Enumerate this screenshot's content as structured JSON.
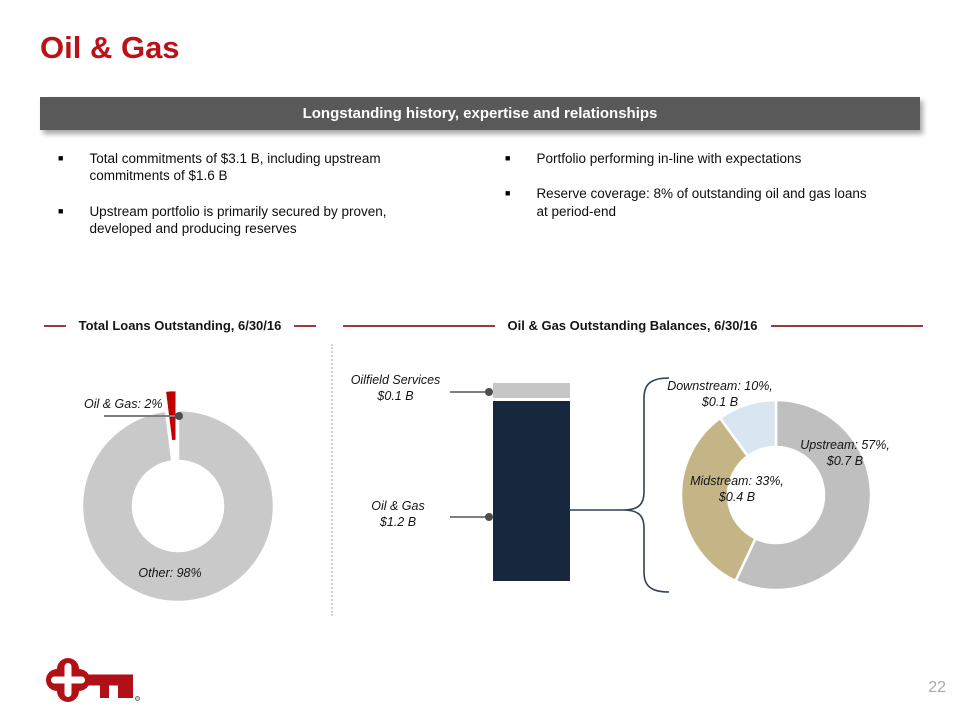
{
  "slide": {
    "title": "Oil & Gas",
    "banner": "Longstanding history, expertise and relationships",
    "page_number": "22",
    "accent_red": "#bb1119",
    "banner_bg": "#595959",
    "logo": "keybank-key-logo"
  },
  "bullets": {
    "left": [
      "Total commitments of $3.1 B, including upstream\ncommitments of $1.6 B",
      "Upstream portfolio is primarily secured by proven,\ndeveloped and producing reserves"
    ],
    "right": [
      "Portfolio performing in-line with expectations",
      "Reserve coverage: 8% of outstanding oil and gas loans\nat period-end"
    ]
  },
  "sections": {
    "left_header": "Total Loans Outstanding, 6/30/16",
    "right_header": "Oil & Gas Outstanding Balances, 6/30/16"
  },
  "chart_data": [
    {
      "type": "pie",
      "donut": true,
      "title": "Total Loans Outstanding, 6/30/16",
      "start_angle_deg": -7.2,
      "legend": "none, direct labels",
      "slices": [
        {
          "label": "Oil & Gas",
          "pct": 2,
          "color": "#c00000",
          "exploded": true,
          "callout": "Oil & Gas: 2%"
        },
        {
          "label": "Other",
          "pct": 98,
          "color": "#c9c9c9",
          "exploded": false,
          "callout": "Other: 98%"
        }
      ]
    },
    {
      "type": "bar",
      "stacked": true,
      "title": "Oil & Gas Outstanding Balances, 6/30/16",
      "unit": "$ Billions",
      "segments": [
        {
          "label": "Oilfield Services",
          "value": 0.1,
          "value_label": "Oilfield Services\n$0.1 B",
          "color": "#c6c6c6"
        },
        {
          "label": "Oil & Gas",
          "value": 1.2,
          "value_label": "Oil & Gas\n$1.2 B",
          "color": "#16273e"
        }
      ]
    },
    {
      "type": "pie",
      "donut": true,
      "title": "Oil & Gas Outstanding Balances breakdown, 6/30/16",
      "start_angle_deg": 0,
      "legend": "none, direct labels",
      "slices": [
        {
          "label": "Upstream",
          "pct": 57,
          "value": 0.7,
          "color": "#bfbfbf",
          "exploded": false,
          "callout": "Upstream: 57%,\n$0.7 B"
        },
        {
          "label": "Midstream",
          "pct": 33,
          "value": 0.4,
          "color": "#c5b586",
          "exploded": false,
          "callout": "Midstream: 33%,\n$0.4 B"
        },
        {
          "label": "Downstream",
          "pct": 10,
          "value": 0.1,
          "color": "#d9e6f2",
          "exploded": false,
          "callout": "Downstream: 10%,\n$0.1 B"
        }
      ]
    }
  ]
}
